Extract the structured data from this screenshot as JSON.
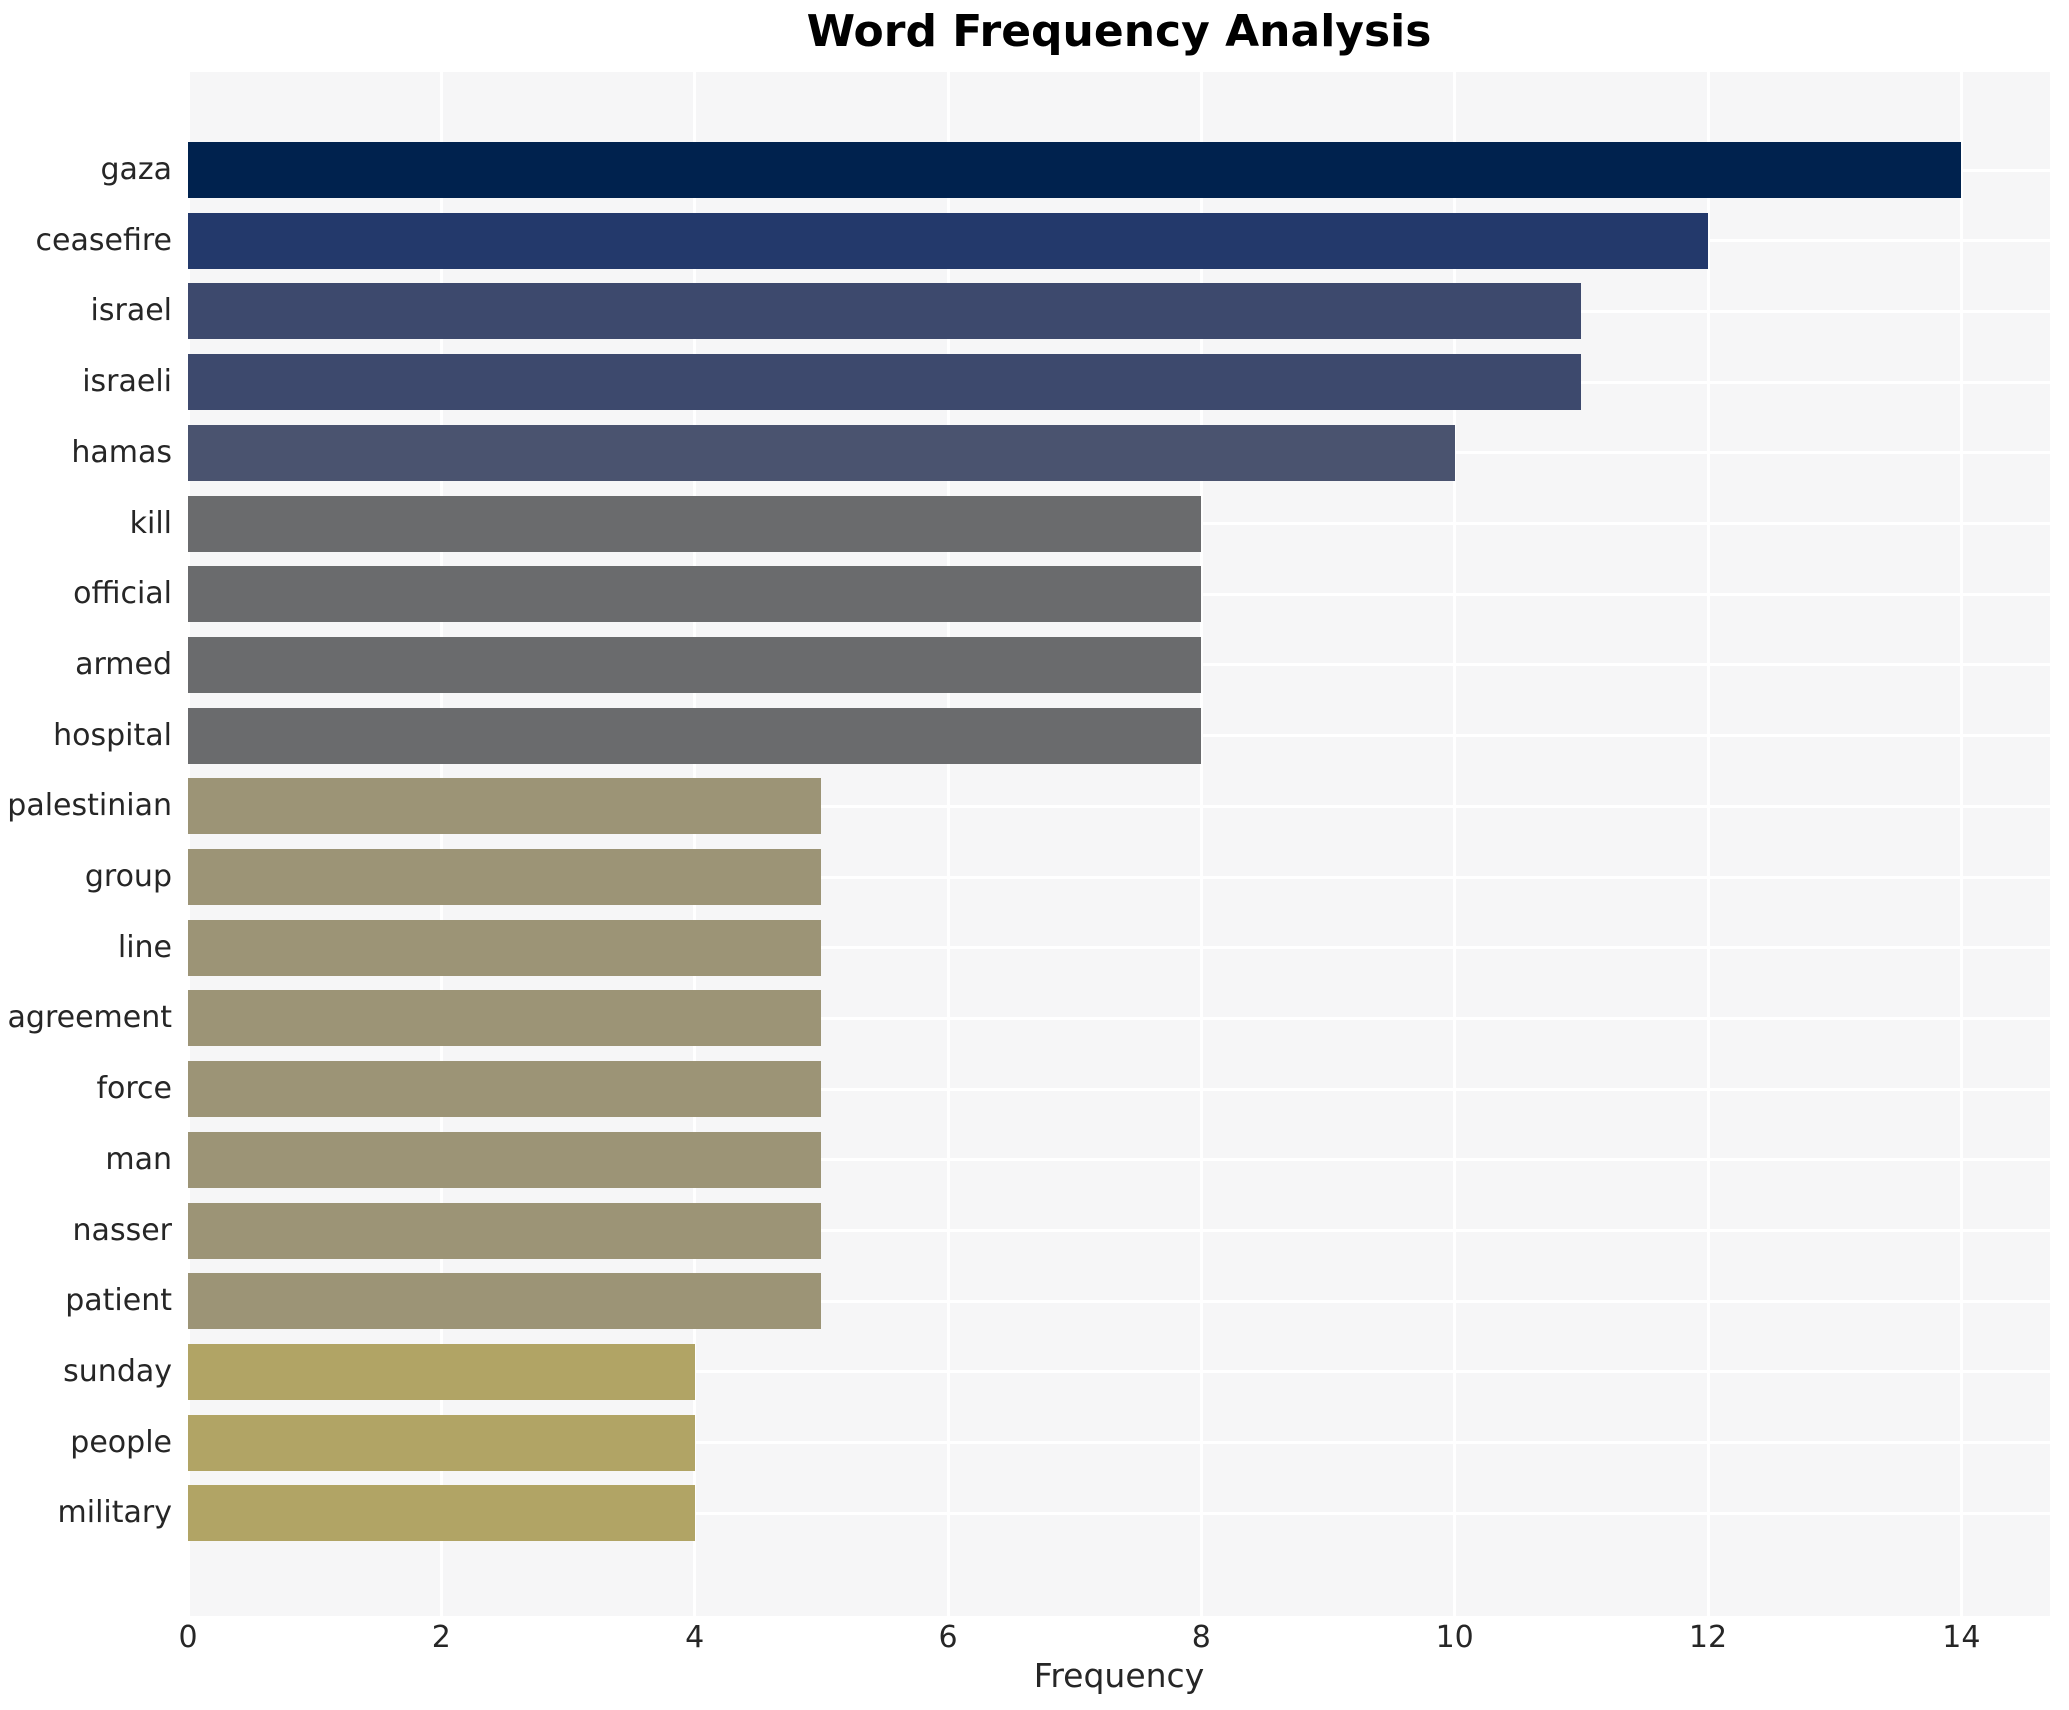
{
  "chart_data": {
    "type": "bar",
    "orientation": "horizontal",
    "title": "Word Frequency Analysis",
    "xlabel": "Frequency",
    "ylabel": "",
    "categories": [
      "gaza",
      "ceasefire",
      "israel",
      "israeli",
      "hamas",
      "kill",
      "official",
      "armed",
      "hospital",
      "palestinian",
      "group",
      "line",
      "agreement",
      "force",
      "man",
      "nasser",
      "patient",
      "sunday",
      "people",
      "military"
    ],
    "values": [
      14,
      12,
      11,
      11,
      10,
      8,
      8,
      8,
      8,
      5,
      5,
      5,
      5,
      5,
      5,
      5,
      5,
      4,
      4,
      4
    ],
    "bar_colors": [
      "#00224e",
      "#23396b",
      "#3d496d",
      "#3d496d",
      "#4a536f",
      "#6a6b6d",
      "#6a6b6d",
      "#6a6b6d",
      "#6a6b6d",
      "#9c9476",
      "#9c9476",
      "#9c9476",
      "#9c9476",
      "#9c9476",
      "#9c9476",
      "#9c9476",
      "#9c9476",
      "#b1a465",
      "#b1a465",
      "#b1a465"
    ],
    "xticks": [
      0,
      2,
      4,
      6,
      8,
      10,
      12,
      14
    ],
    "xlim": [
      0,
      14.7
    ],
    "grid": true,
    "legend": false,
    "plot_bg_color": "#f6f6f7",
    "grid_color": "#ffffff",
    "tick_text_color": "#262626",
    "title_color": "#000000"
  }
}
